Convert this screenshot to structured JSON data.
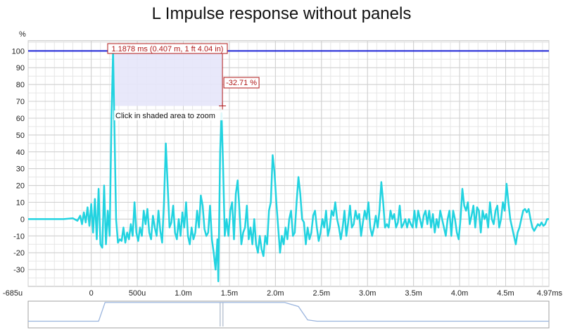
{
  "chart_data": {
    "type": "line",
    "title": "L Impulse response without panels",
    "ylabel": "%",
    "xlabel": "",
    "ylim": [
      -40,
      106
    ],
    "xlim": [
      -0.685,
      4.97
    ],
    "y_ticks": [
      -30,
      -20,
      -10,
      0,
      10,
      20,
      30,
      40,
      50,
      60,
      70,
      80,
      90,
      100
    ],
    "x_ticks": [
      {
        "value": -0.685,
        "label": "-685u"
      },
      {
        "value": 0,
        "label": "0"
      },
      {
        "value": 0.5,
        "label": "500u"
      },
      {
        "value": 1.0,
        "label": "1.0m"
      },
      {
        "value": 1.5,
        "label": "1.5m"
      },
      {
        "value": 2.0,
        "label": "2.0m"
      },
      {
        "value": 2.5,
        "label": "2.5m"
      },
      {
        "value": 3.0,
        "label": "3.0m"
      },
      {
        "value": 3.5,
        "label": "3.5m"
      },
      {
        "value": 4.0,
        "label": "4.0m"
      },
      {
        "value": 4.5,
        "label": "4.5m"
      },
      {
        "value": 4.97,
        "label": "4.97ms"
      }
    ],
    "grid": true,
    "series": [
      {
        "color": "#22d3e0",
        "points": [
          [
            -0.685,
            0
          ],
          [
            -0.6,
            0
          ],
          [
            -0.5,
            0
          ],
          [
            -0.4,
            0
          ],
          [
            -0.3,
            0
          ],
          [
            -0.2,
            0.5
          ],
          [
            -0.15,
            -1
          ],
          [
            -0.12,
            2
          ],
          [
            -0.1,
            -3
          ],
          [
            -0.08,
            4
          ],
          [
            -0.06,
            -2
          ],
          [
            -0.04,
            7
          ],
          [
            -0.02,
            -4
          ],
          [
            0.0,
            9
          ],
          [
            0.02,
            -8
          ],
          [
            0.04,
            12
          ],
          [
            0.06,
            -12
          ],
          [
            0.08,
            18
          ],
          [
            0.1,
            -15
          ],
          [
            0.12,
            -17
          ],
          [
            0.14,
            20
          ],
          [
            0.16,
            -15
          ],
          [
            0.18,
            5
          ],
          [
            0.2,
            -10
          ],
          [
            0.22,
            60
          ],
          [
            0.237,
            100
          ],
          [
            0.25,
            60
          ],
          [
            0.27,
            0
          ],
          [
            0.29,
            -14
          ],
          [
            0.31,
            -12
          ],
          [
            0.33,
            -13
          ],
          [
            0.35,
            -5
          ],
          [
            0.37,
            -14
          ],
          [
            0.39,
            -8
          ],
          [
            0.41,
            -12
          ],
          [
            0.43,
            -3
          ],
          [
            0.45,
            -10
          ],
          [
            0.47,
            10
          ],
          [
            0.49,
            -8
          ],
          [
            0.51,
            -13
          ],
          [
            0.53,
            -5
          ],
          [
            0.55,
            -10
          ],
          [
            0.57,
            5
          ],
          [
            0.59,
            -3
          ],
          [
            0.61,
            6
          ],
          [
            0.63,
            -8
          ],
          [
            0.65,
            -12
          ],
          [
            0.67,
            2
          ],
          [
            0.69,
            -5
          ],
          [
            0.71,
            -10
          ],
          [
            0.73,
            5
          ],
          [
            0.75,
            -7
          ],
          [
            0.77,
            -14
          ],
          [
            0.79,
            10
          ],
          [
            0.81,
            45
          ],
          [
            0.83,
            20
          ],
          [
            0.85,
            -5
          ],
          [
            0.87,
            -2
          ],
          [
            0.89,
            8
          ],
          [
            0.91,
            -8
          ],
          [
            0.93,
            -12
          ],
          [
            0.95,
            0
          ],
          [
            0.97,
            -10
          ],
          [
            0.99,
            4
          ],
          [
            1.01,
            -5
          ],
          [
            1.03,
            10
          ],
          [
            1.05,
            -10
          ],
          [
            1.07,
            -15
          ],
          [
            1.09,
            -5
          ],
          [
            1.11,
            -12
          ],
          [
            1.13,
            -8
          ],
          [
            1.15,
            5
          ],
          [
            1.17,
            -5
          ],
          [
            1.19,
            14
          ],
          [
            1.21,
            8
          ],
          [
            1.23,
            -6
          ],
          [
            1.25,
            -10
          ],
          [
            1.27,
            -8
          ],
          [
            1.29,
            8
          ],
          [
            1.31,
            -12
          ],
          [
            1.33,
            -20
          ],
          [
            1.35,
            -30
          ],
          [
            1.37,
            -12
          ],
          [
            1.38,
            -37
          ],
          [
            1.4,
            40
          ],
          [
            1.415,
            63
          ],
          [
            1.43,
            35
          ],
          [
            1.45,
            -10
          ],
          [
            1.47,
            0
          ],
          [
            1.49,
            -10
          ],
          [
            1.51,
            5
          ],
          [
            1.53,
            10
          ],
          [
            1.55,
            -12
          ],
          [
            1.57,
            15
          ],
          [
            1.59,
            23
          ],
          [
            1.61,
            5
          ],
          [
            1.63,
            -15
          ],
          [
            1.65,
            -8
          ],
          [
            1.67,
            -5
          ],
          [
            1.69,
            8
          ],
          [
            1.71,
            -12
          ],
          [
            1.73,
            -5
          ],
          [
            1.75,
            -15
          ],
          [
            1.77,
            0
          ],
          [
            1.79,
            -15
          ],
          [
            1.81,
            -20
          ],
          [
            1.83,
            -10
          ],
          [
            1.85,
            -18
          ],
          [
            1.87,
            -22
          ],
          [
            1.89,
            -10
          ],
          [
            1.91,
            -15
          ],
          [
            1.93,
            5
          ],
          [
            1.95,
            10
          ],
          [
            1.97,
            38
          ],
          [
            1.99,
            28
          ],
          [
            2.01,
            10
          ],
          [
            2.03,
            -5
          ],
          [
            2.05,
            -20
          ],
          [
            2.07,
            -10
          ],
          [
            2.09,
            -15
          ],
          [
            2.11,
            -5
          ],
          [
            2.13,
            -12
          ],
          [
            2.15,
            0
          ],
          [
            2.17,
            5
          ],
          [
            2.19,
            -10
          ],
          [
            2.21,
            -8
          ],
          [
            2.23,
            10
          ],
          [
            2.25,
            25
          ],
          [
            2.27,
            15
          ],
          [
            2.29,
            0
          ],
          [
            2.31,
            -2
          ],
          [
            2.33,
            -15
          ],
          [
            2.35,
            -5
          ],
          [
            2.37,
            -12
          ],
          [
            2.39,
            -8
          ],
          [
            2.41,
            2
          ],
          [
            2.43,
            5
          ],
          [
            2.45,
            -5
          ],
          [
            2.47,
            -13
          ],
          [
            2.49,
            -8
          ],
          [
            2.51,
            0
          ],
          [
            2.53,
            -5
          ],
          [
            2.55,
            5
          ],
          [
            2.57,
            -10
          ],
          [
            2.59,
            -5
          ],
          [
            2.61,
            5
          ],
          [
            2.63,
            2
          ],
          [
            2.65,
            10
          ],
          [
            2.67,
            0
          ],
          [
            2.69,
            -5
          ],
          [
            2.71,
            -12
          ],
          [
            2.73,
            -5
          ],
          [
            2.75,
            5
          ],
          [
            2.77,
            -10
          ],
          [
            2.79,
            -2
          ],
          [
            2.81,
            8
          ],
          [
            2.83,
            -5
          ],
          [
            2.85,
            -3
          ],
          [
            2.87,
            5
          ],
          [
            2.89,
            0
          ],
          [
            2.91,
            3
          ],
          [
            2.93,
            -10
          ],
          [
            2.95,
            -2
          ],
          [
            2.97,
            5
          ],
          [
            2.99,
            0
          ],
          [
            3.01,
            10
          ],
          [
            3.03,
            -5
          ],
          [
            3.05,
            -10
          ],
          [
            3.07,
            -5
          ],
          [
            3.09,
            2
          ],
          [
            3.11,
            -5
          ],
          [
            3.13,
            5
          ],
          [
            3.15,
            22
          ],
          [
            3.17,
            10
          ],
          [
            3.19,
            -5
          ],
          [
            3.21,
            -3
          ],
          [
            3.23,
            -5
          ],
          [
            3.25,
            5
          ],
          [
            3.27,
            0
          ],
          [
            3.29,
            3
          ],
          [
            3.31,
            -5
          ],
          [
            3.33,
            -2
          ],
          [
            3.35,
            8
          ],
          [
            3.37,
            -5
          ],
          [
            3.39,
            -3
          ],
          [
            3.41,
            0
          ],
          [
            3.43,
            -5
          ],
          [
            3.45,
            0
          ],
          [
            3.47,
            -3
          ],
          [
            3.49,
            -5
          ],
          [
            3.51,
            5
          ],
          [
            3.53,
            -5
          ],
          [
            3.55,
            5
          ],
          [
            3.57,
            0
          ],
          [
            3.59,
            -5
          ],
          [
            3.61,
            2
          ],
          [
            3.63,
            5
          ],
          [
            3.65,
            -3
          ],
          [
            3.67,
            5
          ],
          [
            3.69,
            -5
          ],
          [
            3.71,
            3
          ],
          [
            3.73,
            -8
          ],
          [
            3.75,
            0
          ],
          [
            3.77,
            -5
          ],
          [
            3.79,
            5
          ],
          [
            3.81,
            0
          ],
          [
            3.83,
            -5
          ],
          [
            3.85,
            -10
          ],
          [
            3.87,
            0
          ],
          [
            3.89,
            5
          ],
          [
            3.91,
            -10
          ],
          [
            3.93,
            5
          ],
          [
            3.95,
            0
          ],
          [
            3.97,
            -8
          ],
          [
            3.99,
            -12
          ],
          [
            4.01,
            0
          ],
          [
            4.03,
            18
          ],
          [
            4.05,
            8
          ],
          [
            4.07,
            5
          ],
          [
            4.09,
            10
          ],
          [
            4.11,
            -3
          ],
          [
            4.13,
            2
          ],
          [
            4.15,
            8
          ],
          [
            4.17,
            -5
          ],
          [
            4.19,
            7
          ],
          [
            4.21,
            5
          ],
          [
            4.23,
            -8
          ],
          [
            4.25,
            5
          ],
          [
            4.27,
            0
          ],
          [
            4.29,
            3
          ],
          [
            4.31,
            -5
          ],
          [
            4.33,
            10
          ],
          [
            4.35,
            0
          ],
          [
            4.37,
            -3
          ],
          [
            4.39,
            5
          ],
          [
            4.41,
            8
          ],
          [
            4.43,
            -5
          ],
          [
            4.45,
            0
          ],
          [
            4.47,
            10
          ],
          [
            4.49,
            5
          ],
          [
            4.51,
            21
          ],
          [
            4.53,
            10
          ],
          [
            4.55,
            0
          ],
          [
            4.57,
            -5
          ],
          [
            4.59,
            -10
          ],
          [
            4.61,
            -15
          ],
          [
            4.63,
            -8
          ],
          [
            4.65,
            -5
          ],
          [
            4.67,
            0
          ],
          [
            4.69,
            5
          ],
          [
            4.71,
            6
          ],
          [
            4.73,
            4
          ],
          [
            4.75,
            6
          ],
          [
            4.77,
            0
          ],
          [
            4.79,
            -5
          ],
          [
            4.81,
            -7
          ],
          [
            4.83,
            -5
          ],
          [
            4.85,
            -3
          ],
          [
            4.87,
            -4
          ],
          [
            4.89,
            -2
          ],
          [
            4.91,
            -4
          ],
          [
            4.93,
            -3
          ],
          [
            4.95,
            0
          ],
          [
            4.97,
            0
          ]
        ]
      }
    ],
    "reference_line": {
      "y": 100,
      "color": "#1a22d6"
    },
    "cursor_annotation": {
      "x_label": "1.1878 ms (0.407 m, 1 ft 4.04 in)",
      "y_label": "-32.71 %",
      "hint": "Click in shaded area to zoom",
      "x_start": 0.237,
      "x_end": 1.4248,
      "y_start": 100,
      "y_end": 67.29,
      "fill_color": "#e6e6fa",
      "border_color": "#b01818"
    }
  },
  "overview": {
    "line_color": "#9bb5de",
    "envelope": [
      [
        -0.685,
        0.25
      ],
      [
        0.0,
        0.25
      ],
      [
        0.08,
        0.25
      ],
      [
        0.15,
        0.95
      ],
      [
        1.15,
        0.95
      ],
      [
        1.2,
        0.95
      ],
      [
        1.3,
        0.95
      ],
      [
        1.5,
        0.95
      ],
      [
        2.0,
        0.95
      ],
      [
        2.1,
        0.95
      ],
      [
        2.25,
        0.8
      ],
      [
        2.35,
        0.3
      ],
      [
        2.45,
        0.25
      ],
      [
        4.97,
        0.25
      ]
    ]
  }
}
